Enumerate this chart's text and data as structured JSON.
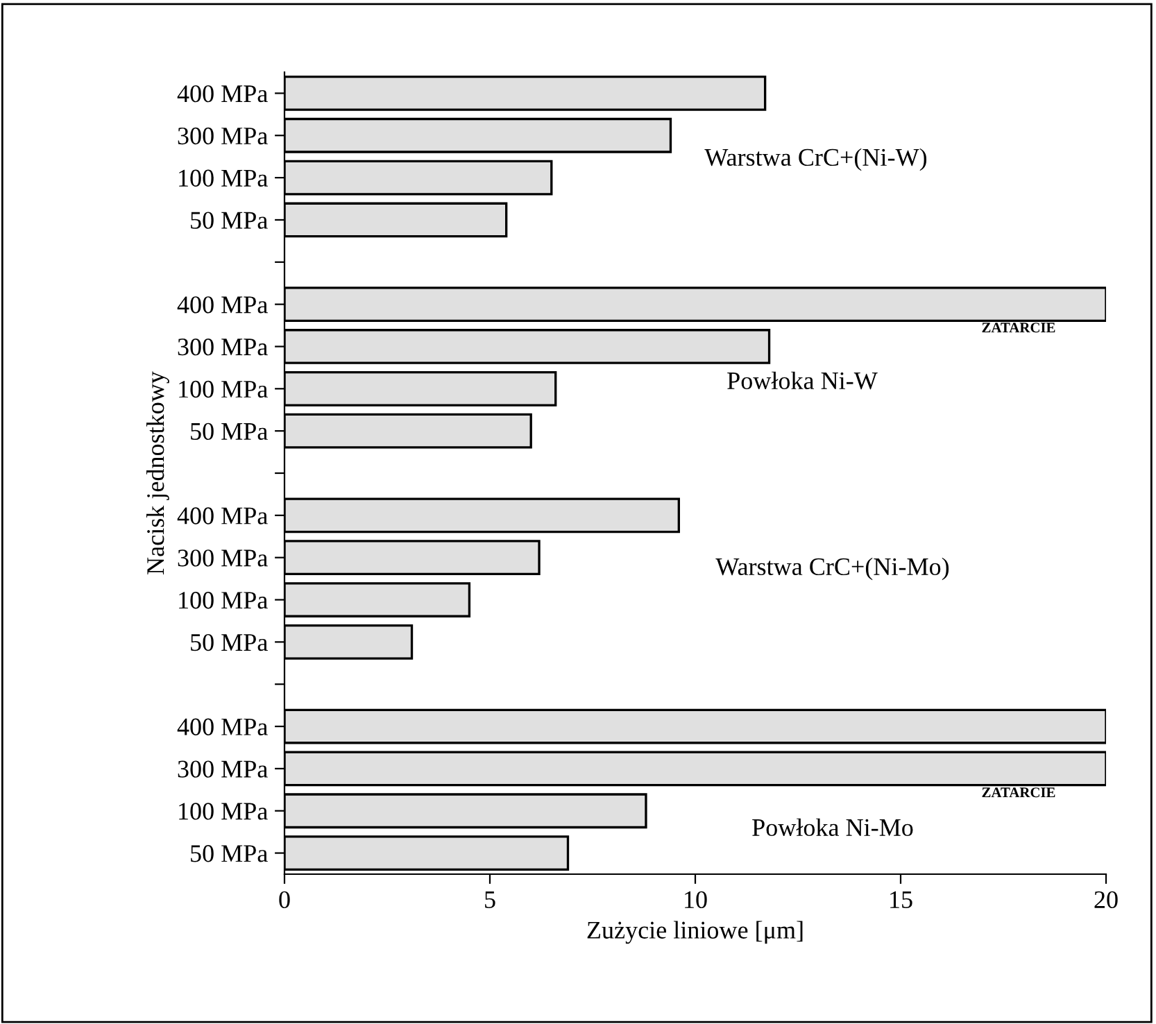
{
  "chart_data": {
    "type": "bar",
    "orientation": "horizontal",
    "categories": [
      "400 MPa",
      "300 MPa",
      "100 MPa",
      "50 MPa",
      null,
      "400 MPa",
      "300 MPa",
      "100 MPa",
      "50 MPa",
      null,
      "400 MPa",
      "300 MPa",
      "100 MPa",
      "50 MPa",
      null,
      "400 MPa",
      "300 MPa",
      "100 MPa",
      "50 MPa"
    ],
    "values": [
      11.7,
      9.4,
      6.5,
      5.4,
      null,
      20,
      11.8,
      6.6,
      6.0,
      null,
      9.6,
      6.2,
      4.5,
      3.1,
      null,
      20,
      20,
      8.8,
      6.9
    ],
    "color": "#e0e0e0",
    "xlim": [
      0,
      20
    ],
    "xticks": [
      0,
      5,
      10,
      15,
      20
    ],
    "xlabel": "Zużycie liniowe [μm]",
    "ylabel": "Nacisk jednostkowy",
    "grid": false,
    "legend": false,
    "annotations": [
      "Warstwa CrC+(Ni-W)",
      "ZATARCIE",
      "Powłoka Ni-W",
      "Warstwa CrC+(Ni-Mo)",
      "ZATARCIE",
      "Powłoka Ni-Mo"
    ]
  }
}
